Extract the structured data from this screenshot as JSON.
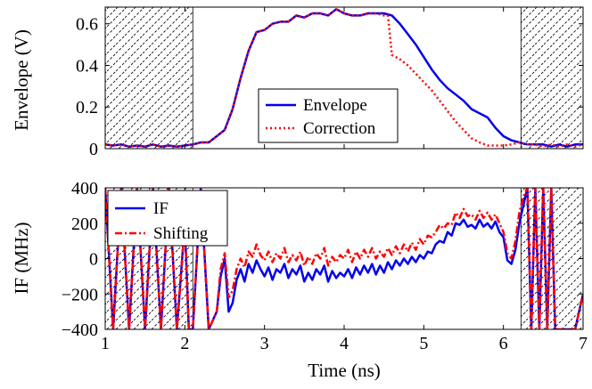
{
  "chart_data": [
    {
      "type": "line",
      "ylabel": "Envelope (V)",
      "xlabel": "",
      "xlim": [
        1,
        7
      ],
      "ylim": [
        0,
        0.68
      ],
      "xticks": [
        "1",
        "2",
        "3",
        "4",
        "5",
        "6",
        "7"
      ],
      "yticks": [
        "0",
        "0.2",
        "0.4",
        "0.6"
      ],
      "ytick_values": [
        0,
        0.2,
        0.4,
        0.6
      ],
      "grid": false,
      "legend_position": "center",
      "hatched_x_ranges": [
        [
          1,
          2.1
        ],
        [
          6.22,
          7
        ]
      ],
      "series": [
        {
          "name": "Envelope",
          "color": "#0000ee",
          "style": "solid",
          "x": [
            1,
            1.1,
            1.2,
            1.3,
            1.4,
            1.5,
            1.6,
            1.7,
            1.8,
            1.9,
            2.0,
            2.1,
            2.2,
            2.3,
            2.4,
            2.5,
            2.6,
            2.7,
            2.8,
            2.9,
            3.0,
            3.1,
            3.2,
            3.3,
            3.4,
            3.5,
            3.6,
            3.7,
            3.8,
            3.9,
            4.0,
            4.1,
            4.2,
            4.3,
            4.4,
            4.5,
            4.6,
            4.7,
            4.8,
            4.9,
            5.0,
            5.1,
            5.2,
            5.3,
            5.4,
            5.5,
            5.6,
            5.7,
            5.8,
            5.9,
            6.0,
            6.1,
            6.2,
            6.3,
            6.4,
            6.5,
            6.6,
            6.7,
            6.8,
            6.9,
            7.0
          ],
          "y": [
            0.02,
            0.015,
            0.02,
            0.01,
            0.015,
            0.01,
            0.02,
            0.01,
            0.015,
            0.01,
            0.015,
            0.02,
            0.03,
            0.03,
            0.06,
            0.09,
            0.19,
            0.34,
            0.47,
            0.56,
            0.57,
            0.6,
            0.61,
            0.61,
            0.64,
            0.63,
            0.65,
            0.65,
            0.64,
            0.67,
            0.65,
            0.64,
            0.64,
            0.65,
            0.65,
            0.65,
            0.64,
            0.6,
            0.55,
            0.5,
            0.44,
            0.38,
            0.33,
            0.29,
            0.26,
            0.23,
            0.19,
            0.17,
            0.15,
            0.1,
            0.06,
            0.04,
            0.03,
            0.02,
            0.02,
            0.02,
            0.01,
            0.02,
            0.01,
            0.02,
            0.02
          ]
        },
        {
          "name": "Correction",
          "color": "#ff0000",
          "style": "dotted",
          "x": [
            1,
            1.1,
            1.2,
            1.3,
            1.4,
            1.5,
            1.6,
            1.7,
            1.8,
            1.9,
            2.0,
            2.1,
            2.2,
            2.3,
            2.4,
            2.5,
            2.6,
            2.7,
            2.8,
            2.9,
            3.0,
            3.1,
            3.2,
            3.3,
            3.4,
            3.5,
            3.6,
            3.7,
            3.8,
            3.9,
            4.0,
            4.1,
            4.2,
            4.3,
            4.4,
            4.5,
            4.55,
            4.6,
            4.7,
            4.8,
            4.9,
            5.0,
            5.1,
            5.2,
            5.3,
            5.4,
            5.5,
            5.6,
            5.7,
            5.8,
            5.9,
            6.0,
            6.1,
            6.2,
            6.3,
            6.4,
            6.5,
            6.6,
            6.7,
            6.8,
            6.9,
            7.0
          ],
          "y": [
            0.02,
            0.015,
            0.02,
            0.01,
            0.015,
            0.01,
            0.02,
            0.01,
            0.015,
            0.01,
            0.015,
            0.02,
            0.03,
            0.03,
            0.06,
            0.09,
            0.19,
            0.34,
            0.47,
            0.56,
            0.57,
            0.6,
            0.61,
            0.61,
            0.64,
            0.63,
            0.65,
            0.65,
            0.64,
            0.67,
            0.65,
            0.64,
            0.64,
            0.65,
            0.65,
            0.64,
            0.64,
            0.45,
            0.43,
            0.4,
            0.36,
            0.32,
            0.28,
            0.23,
            0.18,
            0.13,
            0.09,
            0.05,
            0.03,
            0.015,
            0.015,
            0.015,
            0.02,
            0.03,
            0.02,
            0.02,
            0.01,
            0.02,
            0.01,
            0.02,
            0.01,
            0.02
          ]
        }
      ]
    },
    {
      "type": "line",
      "ylabel": "IF (MHz)",
      "xlabel": "Time (ns)",
      "xlim": [
        1,
        7
      ],
      "ylim": [
        -400,
        400
      ],
      "xticks": [
        "1",
        "2",
        "3",
        "4",
        "5",
        "6",
        "7"
      ],
      "xtick_values": [
        1,
        2,
        3,
        4,
        5,
        6,
        7
      ],
      "yticks": [
        "−400",
        "−200",
        "0",
        "200",
        "400"
      ],
      "ytick_values": [
        -400,
        -200,
        0,
        200,
        400
      ],
      "grid": false,
      "legend_position": "top-left",
      "hatched_x_ranges": [
        [
          1,
          2.1
        ],
        [
          6.22,
          7
        ]
      ],
      "series": [
        {
          "name": "IF",
          "color": "#0000ee",
          "style": "solid",
          "x": [
            1.0,
            1.1,
            1.2,
            1.3,
            1.4,
            1.5,
            1.6,
            1.7,
            1.8,
            1.9,
            2.0,
            2.05,
            2.1,
            2.2,
            2.3,
            2.4,
            2.45,
            2.5,
            2.55,
            2.6,
            2.65,
            2.7,
            2.75,
            2.8,
            2.85,
            2.9,
            2.95,
            3.0,
            3.05,
            3.1,
            3.15,
            3.2,
            3.25,
            3.3,
            3.35,
            3.4,
            3.45,
            3.5,
            3.55,
            3.6,
            3.65,
            3.7,
            3.75,
            3.8,
            3.85,
            3.9,
            3.95,
            4.0,
            4.05,
            4.1,
            4.15,
            4.2,
            4.25,
            4.3,
            4.35,
            4.4,
            4.45,
            4.5,
            4.55,
            4.6,
            4.65,
            4.7,
            4.75,
            4.8,
            4.85,
            4.9,
            4.95,
            5.0,
            5.05,
            5.1,
            5.15,
            5.2,
            5.25,
            5.3,
            5.35,
            5.4,
            5.45,
            5.5,
            5.55,
            5.6,
            5.65,
            5.7,
            5.75,
            5.8,
            5.85,
            5.9,
            5.95,
            6.0,
            6.05,
            6.1,
            6.15,
            6.2,
            6.25,
            6.3,
            6.35,
            6.4,
            6.45,
            6.5,
            6.55,
            6.6,
            6.65,
            6.7,
            6.75,
            6.8,
            6.85,
            6.9,
            6.95,
            7.0
          ],
          "y": [
            400,
            -400,
            400,
            -400,
            400,
            -400,
            400,
            -400,
            400,
            -400,
            200,
            -400,
            -400,
            400,
            -400,
            -300,
            -100,
            0,
            -300,
            -250,
            -120,
            -60,
            -130,
            -30,
            -80,
            -10,
            -60,
            -100,
            -50,
            -120,
            -60,
            -80,
            -30,
            -110,
            -60,
            -90,
            -40,
            -130,
            -80,
            -120,
            -60,
            -90,
            -40,
            -130,
            -70,
            -110,
            -80,
            -100,
            -60,
            -110,
            -50,
            -90,
            -40,
            -80,
            -30,
            -90,
            -40,
            -80,
            -20,
            -60,
            -10,
            -40,
            0,
            -30,
            10,
            -20,
            20,
            0,
            40,
            30,
            80,
            100,
            90,
            150,
            130,
            200,
            190,
            220,
            180,
            190,
            170,
            220,
            180,
            200,
            170,
            210,
            150,
            120,
            -10,
            -30,
            50,
            200,
            300,
            400,
            -400,
            400,
            -400,
            400,
            -400,
            400,
            -400,
            -400,
            -400,
            -400,
            -400,
            -400,
            -300,
            -200
          ]
        },
        {
          "name": "Shifting",
          "color": "#ff0000",
          "style": "dashdot",
          "x": [
            1.0,
            1.1,
            1.2,
            1.3,
            1.4,
            1.5,
            1.6,
            1.7,
            1.8,
            1.9,
            2.0,
            2.05,
            2.1,
            2.2,
            2.3,
            2.4,
            2.45,
            2.5,
            2.55,
            2.6,
            2.65,
            2.7,
            2.75,
            2.8,
            2.85,
            2.9,
            2.95,
            3.0,
            3.05,
            3.1,
            3.15,
            3.2,
            3.25,
            3.3,
            3.35,
            3.4,
            3.45,
            3.5,
            3.55,
            3.6,
            3.65,
            3.7,
            3.75,
            3.8,
            3.85,
            3.9,
            3.95,
            4.0,
            4.05,
            4.1,
            4.15,
            4.2,
            4.25,
            4.3,
            4.35,
            4.4,
            4.45,
            4.5,
            4.55,
            4.6,
            4.65,
            4.7,
            4.75,
            4.8,
            4.85,
            4.9,
            4.95,
            5.0,
            5.05,
            5.1,
            5.15,
            5.2,
            5.25,
            5.3,
            5.35,
            5.4,
            5.45,
            5.5,
            5.55,
            5.6,
            5.65,
            5.7,
            5.75,
            5.8,
            5.85,
            5.9,
            5.95,
            6.0,
            6.05,
            6.1,
            6.15,
            6.2,
            6.25,
            6.3,
            6.35,
            6.4,
            6.45,
            6.5,
            6.55,
            6.6,
            6.65,
            6.7,
            6.75,
            6.8,
            6.85,
            6.9,
            6.95,
            7.0
          ],
          "y": [
            400,
            -400,
            400,
            -400,
            400,
            -400,
            400,
            -400,
            400,
            -400,
            200,
            -400,
            -400,
            400,
            -400,
            -300,
            -60,
            30,
            -220,
            -180,
            -60,
            0,
            -50,
            40,
            10,
            80,
            20,
            -10,
            40,
            -20,
            30,
            0,
            60,
            -20,
            20,
            -10,
            40,
            -40,
            10,
            -30,
            30,
            0,
            60,
            -40,
            10,
            -20,
            20,
            0,
            50,
            -20,
            40,
            0,
            50,
            10,
            60,
            0,
            40,
            10,
            60,
            20,
            70,
            30,
            80,
            40,
            90,
            50,
            110,
            80,
            130,
            120,
            150,
            190,
            170,
            200,
            190,
            260,
            230,
            280,
            240,
            250,
            220,
            270,
            230,
            260,
            220,
            250,
            200,
            150,
            30,
            0,
            100,
            260,
            350,
            400,
            -400,
            400,
            -400,
            400,
            -400,
            400,
            -400,
            -400,
            -400,
            -400,
            -400,
            -400,
            -300,
            -200
          ]
        }
      ]
    }
  ]
}
